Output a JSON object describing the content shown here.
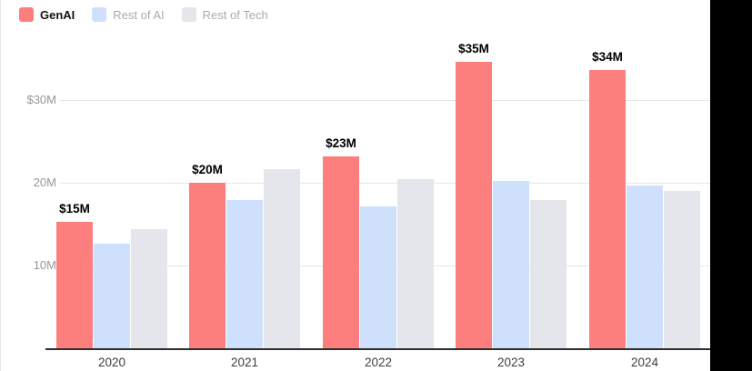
{
  "legend": {
    "items": [
      {
        "label": "GenAI",
        "color": "#fc7e7d",
        "emphasis": true
      },
      {
        "label": "Rest of AI",
        "color": "#cfe0fc",
        "emphasis": false
      },
      {
        "label": "Rest of Tech",
        "color": "#e4e6eb",
        "emphasis": false
      }
    ]
  },
  "chart_data": {
    "type": "bar",
    "title": "",
    "xlabel": "",
    "ylabel": "",
    "categories": [
      "2020",
      "2021",
      "2022",
      "2023",
      "2024"
    ],
    "series": [
      {
        "name": "GenAI",
        "color": "#fc7e7d",
        "values": [
          15.4,
          20.1,
          23.3,
          34.7,
          33.7
        ],
        "data_labels": [
          "$15M",
          "$20M",
          "$23M",
          "$35M",
          "$34M"
        ]
      },
      {
        "name": "Rest of AI",
        "color": "#cfe0fc",
        "values": [
          12.7,
          18.0,
          17.2,
          20.3,
          19.8
        ],
        "data_labels": []
      },
      {
        "name": "Rest of Tech",
        "color": "#e4e6eb",
        "values": [
          14.5,
          21.8,
          20.5,
          18.0,
          19.1
        ],
        "data_labels": []
      }
    ],
    "y_ticks": [
      {
        "label": "$30M",
        "value": 30
      },
      {
        "label": "20M",
        "value": 20
      },
      {
        "label": "10M",
        "value": 10
      }
    ],
    "ylim": [
      0,
      40
    ],
    "grid": "horizontal",
    "legend_position": "top-left",
    "colors": {
      "gridline": "#e6e6e6",
      "axis_line": "#2e2e2e",
      "y_tick_text": "#969696",
      "x_tick_text": "#3d3d3d",
      "data_label_text": "#000000",
      "background": "#ffffff",
      "right_panel": "#000000"
    }
  }
}
